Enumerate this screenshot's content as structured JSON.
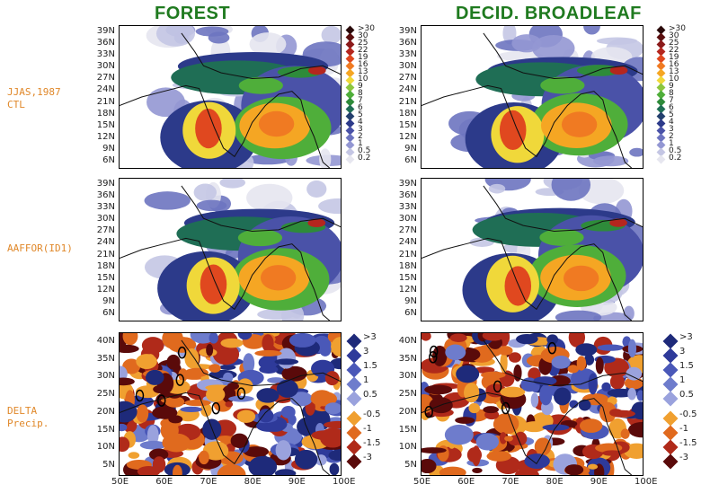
{
  "titles": {
    "forest": "FOREST",
    "decid": "DECID. BROADLEAF"
  },
  "row_labels": {
    "ctl_line1": "JJAS,1987",
    "ctl_line2": "CTL",
    "aafor": "AAFFOR(ID1)",
    "delta_line1": "DELTA",
    "delta_line2": "Precip."
  },
  "lat_ticks_top": [
    "39N",
    "36N",
    "33N",
    "30N",
    "27N",
    "24N",
    "21N",
    "18N",
    "15N",
    "12N",
    "9N",
    "6N"
  ],
  "lat_ticks_bottom": [
    "40N",
    "35N",
    "30N",
    "25N",
    "20N",
    "15N",
    "10N",
    "5N"
  ],
  "lon_ticks": [
    "50E",
    "60E",
    "70E",
    "80E",
    "90E",
    "100E"
  ],
  "precip_legend": [
    ">30",
    "30",
    "25",
    "22",
    "19",
    "16",
    "13",
    "10",
    "9",
    "8",
    "7",
    "6",
    "5",
    "4",
    "3",
    "2",
    "1",
    "0.5",
    "0.2"
  ],
  "precip_colors": [
    "#2a0a0a",
    "#5b0f0f",
    "#8b1a1a",
    "#b5261e",
    "#e0481f",
    "#f07a22",
    "#f5a623",
    "#f0d83a",
    "#8cc63f",
    "#4fae3a",
    "#2e8b3a",
    "#1f6e55",
    "#24406e",
    "#2c3a8a",
    "#4a52a8",
    "#6d74c0",
    "#9397d3",
    "#c4c6e4",
    "#e6e6ef"
  ],
  "delta_legend_pos": [
    ">3",
    "3",
    "1.5",
    "1",
    "0.5"
  ],
  "delta_legend_neg": [
    "-0.5",
    "-1",
    "-1.5",
    "-3"
  ],
  "delta_colors_pos": [
    "#1e2a7a",
    "#2e3a9a",
    "#4a58b8",
    "#6e7ccc",
    "#9aa2dd"
  ],
  "delta_colors_neg": [
    "#f0a030",
    "#e06a1e",
    "#b02a1a",
    "#5a0a0a"
  ]
}
